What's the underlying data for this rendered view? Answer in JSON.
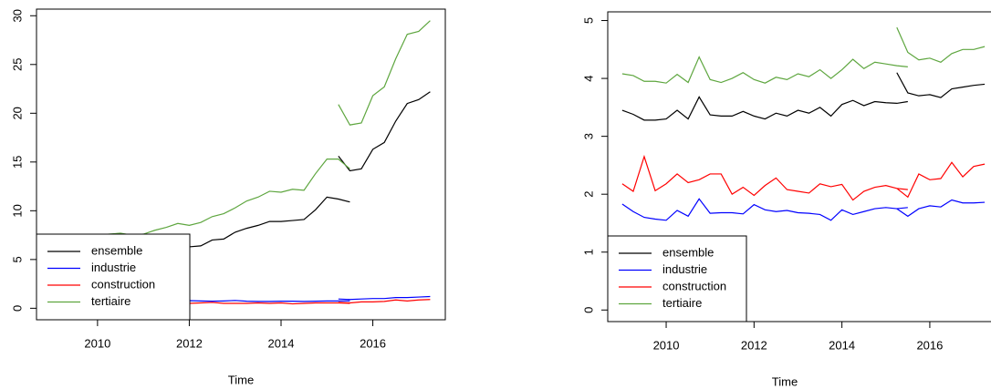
{
  "chart_data": [
    {
      "type": "line",
      "xlabel": "Time",
      "legend": "bottomleft",
      "x": [
        2009,
        2009.25,
        2009.5,
        2009.75,
        2010,
        2010.25,
        2010.5,
        2010.75,
        2011,
        2011.25,
        2011.5,
        2011.75,
        2012,
        2012.25,
        2012.5,
        2012.75,
        2013,
        2013.25,
        2013.5,
        2013.75,
        2014,
        2014.25,
        2014.5,
        2014.75,
        2015,
        2015.25,
        2015.5,
        null,
        2015.25,
        2015.5,
        2015.75,
        2016,
        2016.25,
        2016.5,
        2016.75,
        2017,
        2017.25
      ],
      "series": [
        {
          "name": "ensemble",
          "color": "#000000",
          "values": [
            6.2,
            6.0,
            5.8,
            5.8,
            5.9,
            6.2,
            6.0,
            6.8,
            6.3,
            6.4,
            6.5,
            6.6,
            6.3,
            6.4,
            7.0,
            7.1,
            7.8,
            8.2,
            8.5,
            8.9,
            8.9,
            9.0,
            9.1,
            10.1,
            11.4,
            11.2,
            10.9,
            null,
            15.6,
            14.1,
            14.3,
            16.3,
            17.0,
            19.2,
            21.0,
            21.4,
            22.2
          ]
        },
        {
          "name": "industrie",
          "color": "#0000ff",
          "values": [
            0.75,
            0.72,
            0.7,
            0.7,
            0.68,
            0.72,
            0.7,
            0.75,
            0.7,
            0.72,
            0.72,
            0.75,
            0.78,
            0.75,
            0.72,
            0.75,
            0.8,
            0.72,
            0.7,
            0.7,
            0.72,
            0.72,
            0.7,
            0.72,
            0.75,
            0.75,
            0.76,
            null,
            0.95,
            0.9,
            0.95,
            1.0,
            1.0,
            1.1,
            1.1,
            1.15,
            1.2
          ]
        },
        {
          "name": "construction",
          "color": "#ff0000",
          "values": [
            0.6,
            0.55,
            0.6,
            0.5,
            0.55,
            0.6,
            0.55,
            0.6,
            0.6,
            0.6,
            0.5,
            0.55,
            0.5,
            0.55,
            0.6,
            0.5,
            0.5,
            0.5,
            0.55,
            0.5,
            0.55,
            0.45,
            0.5,
            0.55,
            0.55,
            0.55,
            0.5,
            null,
            0.6,
            0.55,
            0.65,
            0.65,
            0.7,
            0.85,
            0.75,
            0.85,
            0.9
          ]
        },
        {
          "name": "tertiaire",
          "color": "#5ea63f",
          "values": [
            7.0,
            7.2,
            7.4,
            7.5,
            7.5,
            7.6,
            7.7,
            7.5,
            7.6,
            8.0,
            8.3,
            8.7,
            8.5,
            8.8,
            9.4,
            9.7,
            10.3,
            11.0,
            11.4,
            12.0,
            11.9,
            12.2,
            12.1,
            13.8,
            15.3,
            15.3,
            14.3,
            null,
            20.9,
            18.8,
            19.0,
            21.8,
            22.7,
            25.6,
            28.1,
            28.4,
            29.5
          ]
        }
      ],
      "xlim": [
        2008.67,
        2017.58
      ],
      "ylim": [
        -1.18,
        30.68
      ],
      "xticks": [
        2010,
        2012,
        2014,
        2016
      ],
      "yticks": [
        0,
        5,
        10,
        15,
        20,
        25,
        30
      ]
    },
    {
      "type": "line",
      "xlabel": "Time",
      "legend": "bottomleft",
      "x": [
        2009,
        2009.25,
        2009.5,
        2009.75,
        2010,
        2010.25,
        2010.5,
        2010.75,
        2011,
        2011.25,
        2011.5,
        2011.75,
        2012,
        2012.25,
        2012.5,
        2012.75,
        2013,
        2013.25,
        2013.5,
        2013.75,
        2014,
        2014.25,
        2014.5,
        2014.75,
        2015,
        2015.25,
        2015.5,
        null,
        2015.25,
        2015.5,
        2015.75,
        2016,
        2016.25,
        2016.5,
        2016.75,
        2017,
        2017.25
      ],
      "series": [
        {
          "name": "ensemble",
          "color": "#000000",
          "values": [
            3.45,
            3.38,
            3.28,
            3.28,
            3.3,
            3.45,
            3.3,
            3.68,
            3.37,
            3.35,
            3.35,
            3.43,
            3.35,
            3.3,
            3.4,
            3.35,
            3.45,
            3.4,
            3.5,
            3.35,
            3.55,
            3.62,
            3.53,
            3.6,
            3.58,
            3.57,
            3.6,
            null,
            4.1,
            3.75,
            3.7,
            3.72,
            3.67,
            3.82,
            3.85,
            3.88,
            3.9
          ]
        },
        {
          "name": "industrie",
          "color": "#0000ff",
          "values": [
            1.83,
            1.7,
            1.6,
            1.57,
            1.55,
            1.72,
            1.62,
            1.92,
            1.67,
            1.68,
            1.68,
            1.66,
            1.82,
            1.73,
            1.7,
            1.72,
            1.68,
            1.67,
            1.65,
            1.55,
            1.73,
            1.65,
            1.7,
            1.75,
            1.77,
            1.75,
            1.77,
            null,
            1.75,
            1.62,
            1.75,
            1.8,
            1.78,
            1.9,
            1.85,
            1.85,
            1.86
          ]
        },
        {
          "name": "construction",
          "color": "#ff0000",
          "values": [
            2.18,
            2.05,
            2.65,
            2.06,
            2.18,
            2.35,
            2.2,
            2.25,
            2.35,
            2.35,
            2.0,
            2.12,
            1.98,
            2.15,
            2.28,
            2.08,
            2.05,
            2.02,
            2.18,
            2.13,
            2.17,
            1.9,
            2.05,
            2.12,
            2.15,
            2.1,
            2.08,
            null,
            2.1,
            1.95,
            2.35,
            2.25,
            2.27,
            2.55,
            2.3,
            2.48,
            2.52
          ]
        },
        {
          "name": "tertiaire",
          "color": "#5ea63f",
          "values": [
            4.08,
            4.05,
            3.95,
            3.95,
            3.92,
            4.07,
            3.93,
            4.37,
            3.98,
            3.93,
            4.0,
            4.1,
            3.98,
            3.92,
            4.02,
            3.98,
            4.08,
            4.03,
            4.15,
            4.0,
            4.15,
            4.33,
            4.17,
            4.28,
            4.25,
            4.22,
            4.2,
            null,
            4.88,
            4.45,
            4.32,
            4.35,
            4.28,
            4.43,
            4.5,
            4.5,
            4.55
          ]
        }
      ],
      "xlim": [
        2008.67,
        2017.58
      ],
      "ylim": [
        -0.2,
        5.15
      ],
      "xticks": [
        2010,
        2012,
        2014,
        2016
      ],
      "yticks": [
        0,
        1,
        2,
        3,
        4,
        5
      ]
    }
  ]
}
